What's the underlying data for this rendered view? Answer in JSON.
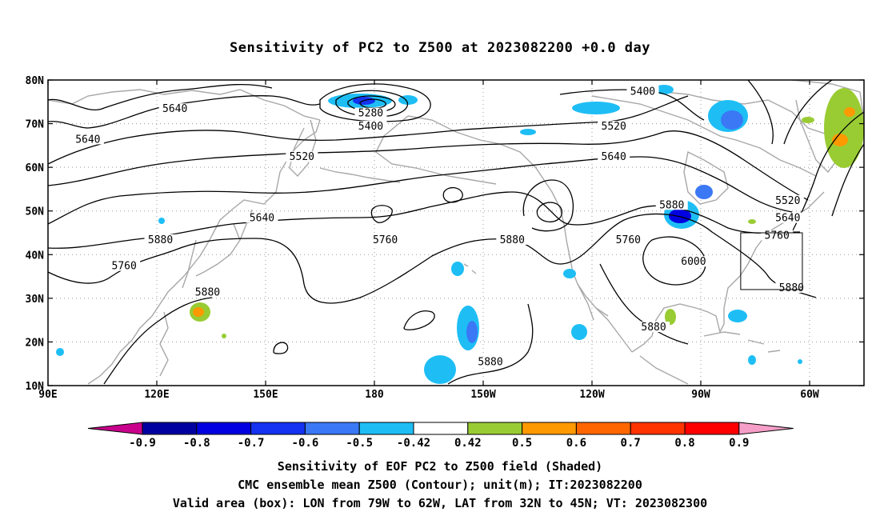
{
  "title": "Sensitivity of PC2 to Z500 at 2023082200 +0.0 day",
  "captions": [
    "Sensitivity of EOF PC2 to Z500 field (Shaded)",
    "CMC ensemble mean Z500 (Contour); unit(m); IT:2023082200",
    "Valid area (box): LON from 79W to 62W, LAT from 32N to 45N; VT: 2023082300"
  ],
  "map": {
    "lon_labels": [
      "90E",
      "120E",
      "150E",
      "180",
      "150W",
      "120W",
      "90W",
      "60W"
    ],
    "lat_labels": [
      "80N",
      "70N",
      "60N",
      "50N",
      "40N",
      "30N",
      "20N",
      "10N"
    ],
    "lon_range_deg_east": [
      90,
      315
    ],
    "lat_range": [
      10,
      80
    ],
    "valid_box": {
      "lon_w": -79,
      "lon_e": -62,
      "lat_s": 32,
      "lat_n": 45
    }
  },
  "colorbar": {
    "labels": [
      "-0.9",
      "-0.8",
      "-0.7",
      "-0.6",
      "-0.5",
      "-0.42",
      "0.42",
      "0.5",
      "0.6",
      "0.7",
      "0.8",
      "0.9"
    ],
    "colors": {
      "below": "#c8008c",
      "bins": [
        "#0000a0",
        "#0000e0",
        "#1432f0",
        "#3a78f5",
        "#1ebef5",
        "#ffffff",
        "#99cc33",
        "#ff9900",
        "#ff6600",
        "#ff3300",
        "#ff0000"
      ],
      "above": "#f59ec8"
    }
  },
  "contour_labels": [
    {
      "text": "5640",
      "lon": 125,
      "lat": 73
    },
    {
      "text": "5640",
      "lon": 101,
      "lat": 66
    },
    {
      "text": "5520",
      "lon": 160,
      "lat": 62
    },
    {
      "text": "5640",
      "lon": 149,
      "lat": 48
    },
    {
      "text": "5880",
      "lon": 121,
      "lat": 43
    },
    {
      "text": "5760",
      "lon": 111,
      "lat": 37
    },
    {
      "text": "5880",
      "lon": 134,
      "lat": 31
    },
    {
      "text": "5280",
      "lon": 179,
      "lat": 72
    },
    {
      "text": "5400",
      "lon": 179,
      "lat": 69
    },
    {
      "text": "5760",
      "lon": 183,
      "lat": 43
    },
    {
      "text": "5880",
      "lon": 218,
      "lat": 43
    },
    {
      "text": "5760",
      "lon": 250,
      "lat": 43
    },
    {
      "text": "5400",
      "lon": 254,
      "lat": 77
    },
    {
      "text": "5520",
      "lon": 246,
      "lat": 69
    },
    {
      "text": "5640",
      "lon": 246,
      "lat": 62
    },
    {
      "text": "5880",
      "lon": 262,
      "lat": 51
    },
    {
      "text": "6000",
      "lon": 268,
      "lat": 38
    },
    {
      "text": "5520",
      "lon": 294,
      "lat": 52
    },
    {
      "text": "5640",
      "lon": 294,
      "lat": 48
    },
    {
      "text": "5760",
      "lon": 291,
      "lat": 44
    },
    {
      "text": "5880",
      "lon": 295,
      "lat": 32
    },
    {
      "text": "5880",
      "lon": 257,
      "lat": 23
    },
    {
      "text": "5880",
      "lon": 212,
      "lat": 15
    }
  ]
}
